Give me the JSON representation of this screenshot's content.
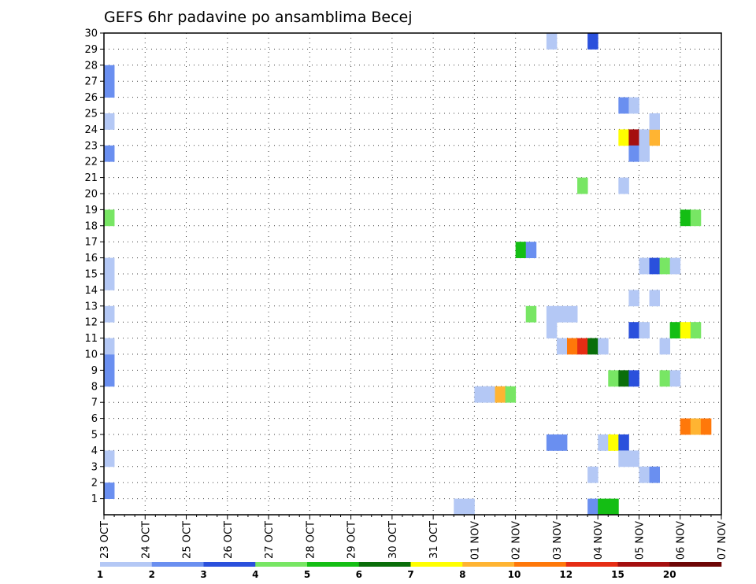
{
  "chart_data": {
    "type": "heatmap",
    "title": "GEFS 6hr padavine po ansamblima Becej",
    "xlabel": "",
    "ylabel": "",
    "x_axis": {
      "unit": "6-hour steps",
      "start": "23 OCT",
      "steps_per_day": 4,
      "total_steps": 60,
      "tick_labels": [
        "23 OCT",
        "24 OCT",
        "25 OCT",
        "26 OCT",
        "27 OCT",
        "28 OCT",
        "29 OCT",
        "30 OCT",
        "31 OCT",
        "01 NOV",
        "02 NOV",
        "03 NOV",
        "04 NOV",
        "05 NOV",
        "06 NOV",
        "07 NOV"
      ]
    },
    "y_axis": {
      "range": [
        0,
        30
      ],
      "tick_labels": [
        1,
        2,
        3,
        4,
        5,
        6,
        7,
        8,
        9,
        10,
        11,
        12,
        13,
        14,
        15,
        16,
        17,
        18,
        19,
        20,
        21,
        22,
        23,
        24,
        25,
        26,
        27,
        28,
        29,
        30
      ]
    },
    "grid": true,
    "legend": {
      "placement": "bottom",
      "labels": [
        "1",
        "2",
        "3",
        "4",
        "5",
        "6",
        "7",
        "8",
        "10",
        "12",
        "15",
        "20"
      ],
      "colors": [
        "#b4c8f5",
        "#6a8ff0",
        "#2a50dc",
        "#78e664",
        "#14be14",
        "#0a6e0a",
        "#ffff00",
        "#ffb432",
        "#ff780a",
        "#e62d14",
        "#a50f0f",
        "#6e0505"
      ]
    },
    "cells": [
      [
        0,
        1,
        "#6a8ff0"
      ],
      [
        0,
        3,
        "#b4c8f5"
      ],
      [
        0,
        8,
        "#6a8ff0"
      ],
      [
        0,
        9,
        "#6a8ff0"
      ],
      [
        0,
        10,
        "#b4c8f5"
      ],
      [
        0,
        12,
        "#b4c8f5"
      ],
      [
        0,
        14,
        "#b4c8f5"
      ],
      [
        0,
        15,
        "#b4c8f5"
      ],
      [
        0,
        18,
        "#78e664"
      ],
      [
        0,
        22,
        "#6a8ff0"
      ],
      [
        0,
        24,
        "#b4c8f5"
      ],
      [
        0,
        26,
        "#6a8ff0"
      ],
      [
        0,
        27,
        "#6a8ff0"
      ],
      [
        34,
        0,
        "#b4c8f5"
      ],
      [
        35,
        0,
        "#b4c8f5"
      ],
      [
        36,
        7,
        "#b4c8f5"
      ],
      [
        37,
        7,
        "#b4c8f5"
      ],
      [
        38,
        7,
        "#ffb432"
      ],
      [
        39,
        7,
        "#78e664"
      ],
      [
        40,
        16,
        "#14be14"
      ],
      [
        41,
        16,
        "#6a8ff0"
      ],
      [
        41,
        12,
        "#78e664"
      ],
      [
        43,
        29,
        "#b4c8f5"
      ],
      [
        43,
        4,
        "#6a8ff0"
      ],
      [
        44,
        4,
        "#6a8ff0"
      ],
      [
        43,
        12,
        "#b4c8f5"
      ],
      [
        44,
        12,
        "#b4c8f5"
      ],
      [
        45,
        12,
        "#b4c8f5"
      ],
      [
        43,
        11,
        "#b4c8f5"
      ],
      [
        44,
        10,
        "#b4c8f5"
      ],
      [
        45,
        10,
        "#ff780a"
      ],
      [
        46,
        10,
        "#e62d14"
      ],
      [
        47,
        10,
        "#0a6e0a"
      ],
      [
        48,
        10,
        "#b4c8f5"
      ],
      [
        46,
        20,
        "#78e664"
      ],
      [
        47,
        29,
        "#2a50dc"
      ],
      [
        47,
        2,
        "#b4c8f5"
      ],
      [
        47,
        0,
        "#6a8ff0"
      ],
      [
        48,
        0,
        "#14be14"
      ],
      [
        49,
        0,
        "#14be14"
      ],
      [
        48,
        4,
        "#b4c8f5"
      ],
      [
        49,
        4,
        "#ffff00"
      ],
      [
        50,
        4,
        "#2a50dc"
      ],
      [
        50,
        3,
        "#b4c8f5"
      ],
      [
        51,
        3,
        "#b4c8f5"
      ],
      [
        49,
        8,
        "#78e664"
      ],
      [
        50,
        8,
        "#0a6e0a"
      ],
      [
        51,
        8,
        "#2a50dc"
      ],
      [
        50,
        25,
        "#6a8ff0"
      ],
      [
        51,
        25,
        "#b4c8f5"
      ],
      [
        50,
        20,
        "#b4c8f5"
      ],
      [
        50,
        23,
        "#ffff00"
      ],
      [
        51,
        23,
        "#a50f0f"
      ],
      [
        52,
        23,
        "#b4c8f5"
      ],
      [
        53,
        23,
        "#ffb432"
      ],
      [
        51,
        22,
        "#6a8ff0"
      ],
      [
        52,
        22,
        "#b4c8f5"
      ],
      [
        53,
        24,
        "#b4c8f5"
      ],
      [
        51,
        13,
        "#b4c8f5"
      ],
      [
        51,
        11,
        "#2a50dc"
      ],
      [
        52,
        11,
        "#b4c8f5"
      ],
      [
        52,
        15,
        "#b4c8f5"
      ],
      [
        53,
        15,
        "#2a50dc"
      ],
      [
        54,
        15,
        "#78e664"
      ],
      [
        55,
        15,
        "#b4c8f5"
      ],
      [
        53,
        13,
        "#b4c8f5"
      ],
      [
        52,
        2,
        "#b4c8f5"
      ],
      [
        53,
        2,
        "#6a8ff0"
      ],
      [
        54,
        8,
        "#78e664"
      ],
      [
        55,
        8,
        "#b4c8f5"
      ],
      [
        54,
        10,
        "#b4c8f5"
      ],
      [
        55,
        11,
        "#14be14"
      ],
      [
        56,
        11,
        "#ffff00"
      ],
      [
        57,
        11,
        "#78e664"
      ],
      [
        56,
        18,
        "#14be14"
      ],
      [
        57,
        18,
        "#78e664"
      ],
      [
        56,
        5,
        "#ff780a"
      ],
      [
        57,
        5,
        "#ffb432"
      ],
      [
        58,
        5,
        "#ff780a"
      ]
    ]
  }
}
